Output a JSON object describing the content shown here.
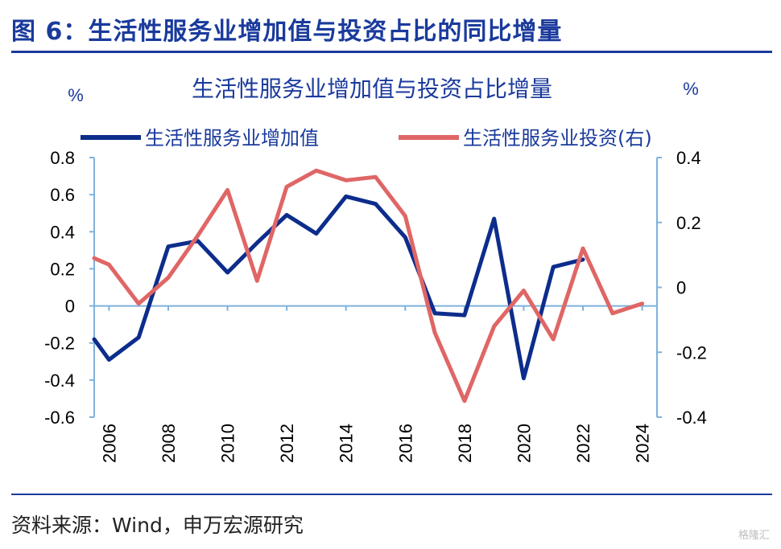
{
  "figure": {
    "title": "图 6：生活性服务业增加值与投资占比的同比增量",
    "source": "资料来源：Wind，申万宏源研究",
    "watermark": "格隆汇"
  },
  "colors": {
    "accent": "#1a3a9c",
    "series_blue": "#0d2d8c",
    "series_red": "#e06666",
    "axis": "#7fb2dc"
  },
  "chart_data": {
    "type": "line",
    "title": "生活性服务业增加值与投资占比增量",
    "y_unit_left": "%",
    "y_unit_right": "%",
    "x_ticks": [
      "2006",
      "2008",
      "2010",
      "2012",
      "2014",
      "2016",
      "2018",
      "2020",
      "2022",
      "2024"
    ],
    "ylim_left": [
      -0.6,
      0.8
    ],
    "yticks_left": [
      "0.8",
      "0.6",
      "0.4",
      "0.2",
      "0",
      "-0.2",
      "-0.4",
      "-0.6"
    ],
    "ylim_right": [
      -0.4,
      0.4
    ],
    "yticks_right": [
      "0.4",
      "0.2",
      "0",
      "-0.2",
      "-0.4"
    ],
    "grid": false,
    "legend_position": "top",
    "series": [
      {
        "name": "生活性服务业增加值",
        "axis": "left",
        "x": [
          2005.5,
          2006,
          2007,
          2008,
          2009,
          2010,
          2011,
          2012,
          2013,
          2014,
          2015,
          2016,
          2017,
          2018,
          2019,
          2020,
          2021,
          2022
        ],
        "values": [
          -0.18,
          -0.29,
          -0.17,
          0.32,
          0.35,
          0.18,
          0.34,
          0.49,
          0.39,
          0.59,
          0.55,
          0.37,
          -0.04,
          -0.05,
          0.47,
          -0.39,
          0.21,
          0.25
        ]
      },
      {
        "name": "生活性服务业投资(右)",
        "axis": "right",
        "x": [
          2005.5,
          2006,
          2007,
          2008,
          2009,
          2010,
          2011,
          2012,
          2013,
          2014,
          2015,
          2016,
          2017,
          2018,
          2019,
          2020,
          2021,
          2022,
          2023,
          2024
        ],
        "values": [
          0.09,
          0.07,
          -0.05,
          0.03,
          0.16,
          0.3,
          0.02,
          0.31,
          0.36,
          0.33,
          0.34,
          0.22,
          -0.14,
          -0.35,
          -0.12,
          -0.01,
          -0.16,
          0.12,
          -0.08,
          -0.05
        ]
      }
    ]
  }
}
